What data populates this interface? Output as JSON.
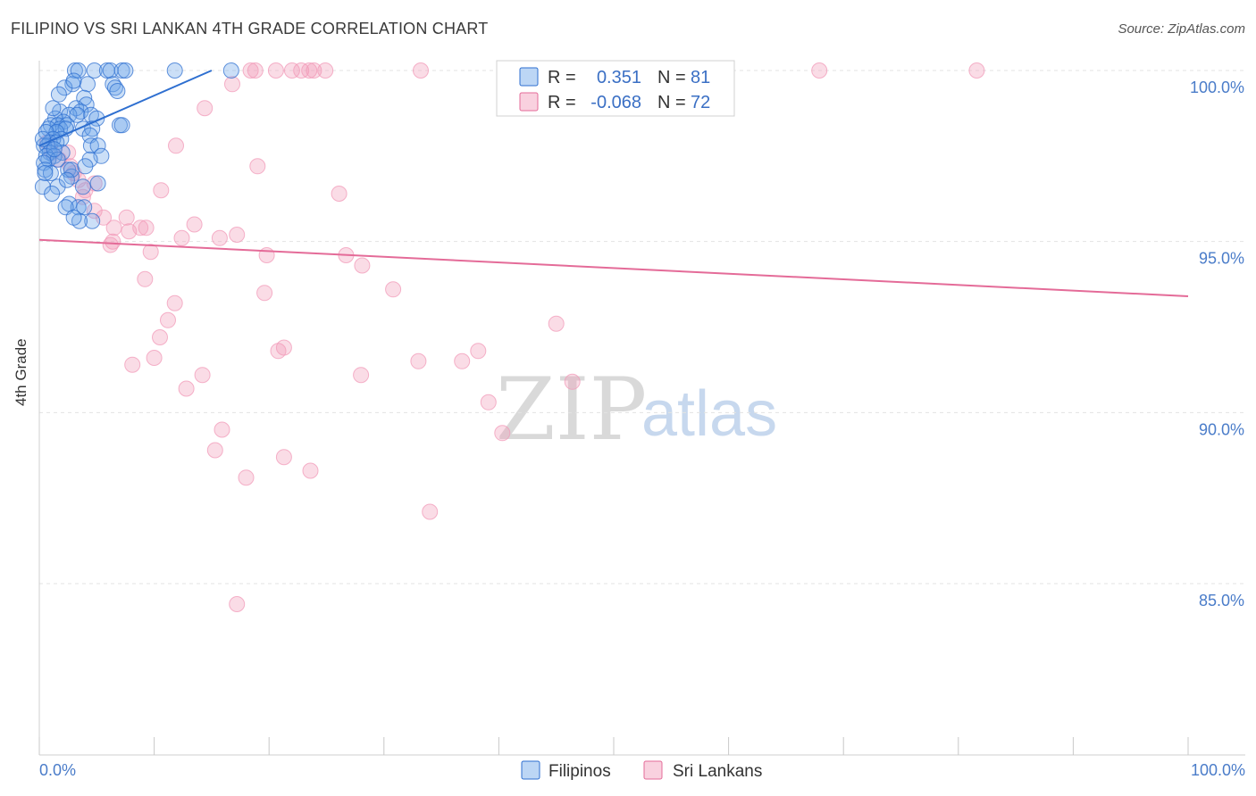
{
  "header": {
    "title": "FILIPINO VS SRI LANKAN 4TH GRADE CORRELATION CHART",
    "source": "Source: ZipAtlas.com"
  },
  "colors": {
    "filipino": "#6aa3e8",
    "filipino_line": "#2e6fd0",
    "srilankan": "#f29ab8",
    "srilankan_line": "#e46b98",
    "tick_label": "#4a7cc9",
    "grid": "#e3e3e3"
  },
  "legend": {
    "row1": {
      "r_label": "R =",
      "r_value": "0.351",
      "n_label": "N =",
      "n_value": "81"
    },
    "row2": {
      "r_label": "R =",
      "r_value": "-0.068",
      "n_label": "N =",
      "n_value": "72"
    }
  },
  "bottom_legend": {
    "filipinos": "Filipinos",
    "srilankans": "Sri Lankans"
  },
  "watermark": {
    "zip": "ZIP",
    "atlas": "atlas"
  },
  "chart_data": {
    "type": "scatter",
    "title": "FILIPINO VS SRI LANKAN 4TH GRADE CORRELATION CHART",
    "xlabel": "",
    "ylabel": "4th Grade",
    "xlim": [
      0,
      100
    ],
    "ylim": [
      80.5,
      100.8
    ],
    "x_tick_labels": {
      "left": "0.0%",
      "right": "100.0%"
    },
    "y_ticks": [
      {
        "value": 100,
        "label": "100.0%"
      },
      {
        "value": 95,
        "label": "95.0%"
      },
      {
        "value": 90,
        "label": "90.0%"
      },
      {
        "value": 85,
        "label": "85.0%"
      }
    ],
    "series": [
      {
        "name": "Filipinos",
        "r": 0.351,
        "n": 81,
        "trend": {
          "x0": 0,
          "y0": 97.8,
          "x1": 15,
          "y1": 100.0
        },
        "points": [
          [
            3.1,
            100
          ],
          [
            3.4,
            100
          ],
          [
            4.8,
            100
          ],
          [
            5.9,
            100
          ],
          [
            6.2,
            100
          ],
          [
            7.2,
            100
          ],
          [
            7.5,
            100
          ],
          [
            11.8,
            100
          ],
          [
            16.7,
            100
          ],
          [
            2.9,
            99.6
          ],
          [
            4.2,
            99.6
          ],
          [
            6.4,
            99.6
          ],
          [
            6.6,
            99.5
          ],
          [
            2.2,
            99.5
          ],
          [
            3.9,
            99.2
          ],
          [
            4.1,
            99.0
          ],
          [
            3.2,
            98.9
          ],
          [
            3.6,
            98.8
          ],
          [
            1.8,
            98.8
          ],
          [
            2.6,
            98.7
          ],
          [
            4.5,
            98.7
          ],
          [
            1.4,
            98.6
          ],
          [
            2.1,
            98.5
          ],
          [
            5.0,
            98.6
          ],
          [
            7.0,
            98.4
          ],
          [
            7.2,
            98.4
          ],
          [
            1.0,
            98.4
          ],
          [
            1.6,
            98.4
          ],
          [
            2.4,
            98.4
          ],
          [
            3.8,
            98.3
          ],
          [
            1.8,
            98.3
          ],
          [
            2.3,
            98.3
          ],
          [
            0.8,
            98.3
          ],
          [
            4.6,
            98.3
          ],
          [
            1.5,
            98.2
          ],
          [
            0.6,
            98.2
          ],
          [
            4.4,
            98.1
          ],
          [
            1.9,
            98.0
          ],
          [
            1.2,
            98.0
          ],
          [
            0.9,
            97.9
          ],
          [
            1.5,
            97.9
          ],
          [
            0.4,
            97.8
          ],
          [
            0.7,
            97.8
          ],
          [
            4.5,
            97.8
          ],
          [
            5.1,
            97.8
          ],
          [
            2.0,
            97.6
          ],
          [
            0.9,
            97.6
          ],
          [
            1.3,
            97.5
          ],
          [
            5.4,
            97.5
          ],
          [
            0.6,
            97.5
          ],
          [
            0.8,
            97.4
          ],
          [
            1.6,
            97.4
          ],
          [
            4.4,
            97.4
          ],
          [
            0.4,
            97.3
          ],
          [
            2.5,
            97.1
          ],
          [
            0.5,
            97.1
          ],
          [
            1.0,
            97.0
          ],
          [
            2.8,
            96.9
          ],
          [
            5.1,
            96.7
          ],
          [
            3.8,
            96.6
          ],
          [
            0.3,
            96.6
          ],
          [
            2.6,
            96.1
          ],
          [
            3.4,
            96.0
          ],
          [
            3.9,
            96.0
          ],
          [
            1.6,
            96.6
          ],
          [
            2.3,
            96.0
          ],
          [
            4.6,
            95.6
          ],
          [
            3.5,
            95.6
          ],
          [
            3.0,
            95.7
          ],
          [
            1.1,
            96.4
          ],
          [
            2.8,
            97.1
          ],
          [
            1.2,
            98.9
          ],
          [
            1.7,
            99.3
          ],
          [
            3.0,
            99.7
          ],
          [
            0.5,
            97.0
          ],
          [
            6.8,
            99.4
          ],
          [
            2.4,
            96.8
          ],
          [
            1.3,
            97.7
          ],
          [
            0.3,
            98.0
          ],
          [
            3.3,
            98.7
          ],
          [
            4.0,
            97.2
          ]
        ]
      },
      {
        "name": "Sri Lankans",
        "r": -0.068,
        "n": 72,
        "trend": {
          "x0": 0,
          "y0": 95.05,
          "x1": 100,
          "y1": 93.4
        },
        "points": [
          [
            18.4,
            100
          ],
          [
            18.8,
            100
          ],
          [
            20.6,
            100
          ],
          [
            22.0,
            100
          ],
          [
            22.8,
            100
          ],
          [
            23.5,
            100
          ],
          [
            23.9,
            100
          ],
          [
            24.9,
            100
          ],
          [
            33.2,
            100
          ],
          [
            41.2,
            100
          ],
          [
            67.9,
            100
          ],
          [
            81.6,
            100
          ],
          [
            16.8,
            99.6
          ],
          [
            14.4,
            98.9
          ],
          [
            11.9,
            97.8
          ],
          [
            19.0,
            97.2
          ],
          [
            1.1,
            97.6
          ],
          [
            1.7,
            97.4
          ],
          [
            2.7,
            97.2
          ],
          [
            3.0,
            97.0
          ],
          [
            3.4,
            96.8
          ],
          [
            4.0,
            96.5
          ],
          [
            3.8,
            96.3
          ],
          [
            10.6,
            96.5
          ],
          [
            26.1,
            96.4
          ],
          [
            4.8,
            95.9
          ],
          [
            5.6,
            95.7
          ],
          [
            7.6,
            95.7
          ],
          [
            9.3,
            95.4
          ],
          [
            8.8,
            95.4
          ],
          [
            6.5,
            95.4
          ],
          [
            13.5,
            95.5
          ],
          [
            12.4,
            95.1
          ],
          [
            15.7,
            95.1
          ],
          [
            17.2,
            95.2
          ],
          [
            6.4,
            95.0
          ],
          [
            6.2,
            94.9
          ],
          [
            9.7,
            94.7
          ],
          [
            19.8,
            94.6
          ],
          [
            26.7,
            94.6
          ],
          [
            28.1,
            94.3
          ],
          [
            9.2,
            93.9
          ],
          [
            30.8,
            93.6
          ],
          [
            19.6,
            93.5
          ],
          [
            11.8,
            93.2
          ],
          [
            11.2,
            92.7
          ],
          [
            45.0,
            92.6
          ],
          [
            10.5,
            92.2
          ],
          [
            21.3,
            91.9
          ],
          [
            20.8,
            91.8
          ],
          [
            38.2,
            91.8
          ],
          [
            10.0,
            91.6
          ],
          [
            33.0,
            91.5
          ],
          [
            36.8,
            91.5
          ],
          [
            8.1,
            91.4
          ],
          [
            14.2,
            91.1
          ],
          [
            28.0,
            91.1
          ],
          [
            12.8,
            90.7
          ],
          [
            46.4,
            90.9
          ],
          [
            39.1,
            90.3
          ],
          [
            40.3,
            89.4
          ],
          [
            15.9,
            89.5
          ],
          [
            15.3,
            88.9
          ],
          [
            21.3,
            88.7
          ],
          [
            23.6,
            88.3
          ],
          [
            18.0,
            88.1
          ],
          [
            34.0,
            87.1
          ],
          [
            17.2,
            84.4
          ],
          [
            2.5,
            97.6
          ],
          [
            0.7,
            97.9
          ],
          [
            4.8,
            96.7
          ],
          [
            7.8,
            95.3
          ]
        ]
      }
    ]
  }
}
